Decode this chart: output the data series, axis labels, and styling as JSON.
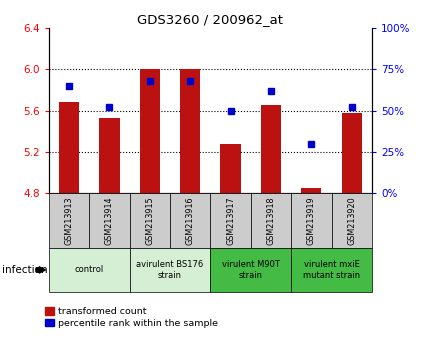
{
  "title": "GDS3260 / 200962_at",
  "samples": [
    "GSM213913",
    "GSM213914",
    "GSM213915",
    "GSM213916",
    "GSM213917",
    "GSM213918",
    "GSM213919",
    "GSM213920"
  ],
  "transformed_counts": [
    5.68,
    5.53,
    6.0,
    6.0,
    5.28,
    5.65,
    4.85,
    5.58
  ],
  "percentile_ranks": [
    65,
    52,
    68,
    68,
    50,
    62,
    30,
    52
  ],
  "ylim_left": [
    4.8,
    6.4
  ],
  "ylim_right": [
    0,
    100
  ],
  "yticks_left": [
    4.8,
    5.2,
    5.6,
    6.0,
    6.4
  ],
  "yticks_right": [
    0,
    25,
    50,
    75,
    100
  ],
  "ytick_labels_right": [
    "0%",
    "25%",
    "50%",
    "75%",
    "100%"
  ],
  "bar_color": "#bb1111",
  "dot_color": "#0000cc",
  "bar_width": 0.5,
  "groups": [
    {
      "label": "control",
      "indices": [
        0,
        1
      ],
      "color": "#d4efd4"
    },
    {
      "label": "avirulent BS176\nstrain",
      "indices": [
        2,
        3
      ],
      "color": "#d4efd4"
    },
    {
      "label": "virulent M90T\nstrain",
      "indices": [
        4,
        5
      ],
      "color": "#44bb44"
    },
    {
      "label": "virulent mxiE\nmutant strain",
      "indices": [
        6,
        7
      ],
      "color": "#44bb44"
    }
  ],
  "xlabel_infection": "infection",
  "legend_red_label": "transformed count",
  "legend_blue_label": "percentile rank within the sample",
  "sample_box_color": "#cccccc"
}
